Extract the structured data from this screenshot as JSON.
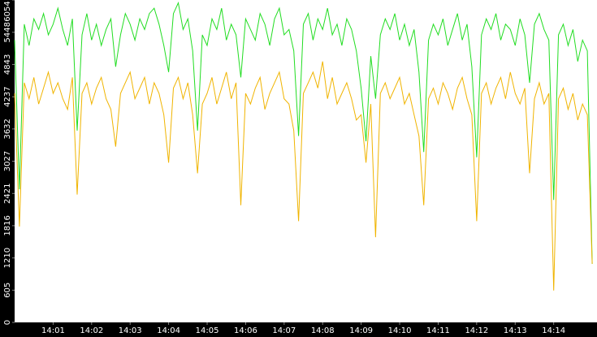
{
  "chart_data": {
    "type": "line",
    "categories": [
      null,
      null,
      null,
      null,
      null,
      null,
      null,
      null,
      "14:01",
      null,
      null,
      null,
      null,
      null,
      null,
      null,
      "14:02",
      null,
      null,
      null,
      null,
      null,
      null,
      null,
      "14:03",
      null,
      null,
      null,
      null,
      null,
      null,
      null,
      "14:04",
      null,
      null,
      null,
      null,
      null,
      null,
      null,
      "14:05",
      null,
      null,
      null,
      null,
      null,
      null,
      null,
      "14:06",
      null,
      null,
      null,
      null,
      null,
      null,
      null,
      "14:07",
      null,
      null,
      null,
      null,
      null,
      null,
      null,
      "14:08",
      null,
      null,
      null,
      null,
      null,
      null,
      null,
      "14:09",
      null,
      null,
      null,
      null,
      null,
      null,
      null,
      "14:10",
      null,
      null,
      null,
      null,
      null,
      null,
      null,
      "14:11",
      null,
      null,
      null,
      null,
      null,
      null,
      null,
      "14:12",
      null,
      null,
      null,
      null,
      null,
      null,
      null,
      "14:13",
      null,
      null,
      null,
      null,
      null,
      null,
      null,
      "14:14",
      null,
      null,
      null,
      null,
      null,
      null,
      null,
      null
    ],
    "series": [
      {
        "color": "#22dd22",
        "values": [
          5300,
          2500,
          5600,
          5200,
          5700,
          5500,
          5800,
          5400,
          5600,
          5900,
          5500,
          5200,
          5700,
          3600,
          5400,
          5800,
          5300,
          5600,
          5200,
          5500,
          5700,
          4800,
          5400,
          5800,
          5600,
          5300,
          5700,
          5500,
          5800,
          5900,
          5600,
          5200,
          4700,
          5800,
          6000,
          5500,
          5700,
          5100,
          3600,
          5400,
          5200,
          5700,
          5500,
          5900,
          5300,
          5600,
          5400,
          4600,
          5700,
          5500,
          5300,
          5800,
          5600,
          5200,
          5700,
          5900,
          5400,
          5500,
          5100,
          3500,
          5600,
          5800,
          5300,
          5700,
          5500,
          5900,
          5400,
          5600,
          5200,
          5700,
          5500,
          5100,
          4400,
          3400,
          5000,
          4200,
          5400,
          5700,
          5500,
          5800,
          5300,
          5600,
          5200,
          5500,
          4700,
          3200,
          5300,
          5600,
          5400,
          5700,
          5200,
          5500,
          5800,
          5300,
          5600,
          4800,
          3100,
          5400,
          5700,
          5500,
          5800,
          5300,
          5600,
          5500,
          5200,
          5700,
          5400,
          4500,
          5600,
          5800,
          5500,
          5300,
          2300,
          5400,
          5600,
          5200,
          5500,
          4900,
          5300,
          5100,
          1100
        ]
      },
      {
        "color": "#f0b400",
        "values": [
          4300,
          1800,
          4500,
          4200,
          4600,
          4100,
          4400,
          4700,
          4300,
          4500,
          4200,
          4000,
          4600,
          2400,
          4300,
          4500,
          4100,
          4400,
          4600,
          4200,
          4000,
          3300,
          4300,
          4500,
          4700,
          4200,
          4400,
          4600,
          4100,
          4500,
          4300,
          3900,
          3000,
          4400,
          4600,
          4200,
          4500,
          3900,
          2800,
          4100,
          4300,
          4600,
          4100,
          4400,
          4700,
          4200,
          4500,
          2200,
          4300,
          4100,
          4400,
          4600,
          4000,
          4300,
          4500,
          4700,
          4200,
          4100,
          3600,
          1900,
          4300,
          4500,
          4700,
          4400,
          4900,
          4200,
          4600,
          4100,
          4300,
          4500,
          4200,
          3800,
          3900,
          3000,
          4100,
          1600,
          4300,
          4500,
          4200,
          4400,
          4600,
          4100,
          4300,
          3900,
          3500,
          2200,
          4200,
          4400,
          4100,
          4500,
          4300,
          4000,
          4400,
          4600,
          4200,
          3900,
          1900,
          4300,
          4500,
          4100,
          4400,
          4600,
          4200,
          4700,
          4300,
          4100,
          4400,
          2800,
          4200,
          4500,
          4100,
          4300,
          600,
          4200,
          4400,
          4000,
          4300,
          3800,
          4100,
          3900,
          1100
        ]
      }
    ],
    "ylim": [
      0,
      6054
    ],
    "yticks": [
      0,
      605,
      1210,
      1816,
      2421,
      3027,
      3632,
      4237,
      4843,
      5448,
      6054
    ]
  }
}
